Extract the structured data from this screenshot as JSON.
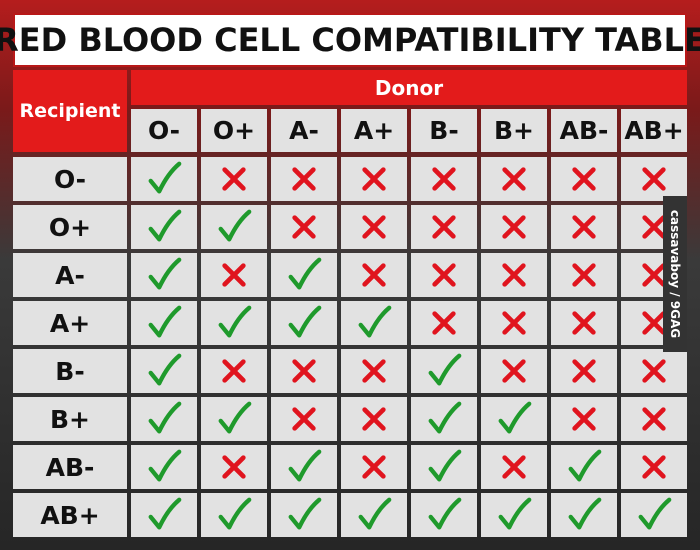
{
  "title": "RED BLOOD CELL COMPATIBILITY TABLE",
  "recipient_label": "Recipient",
  "donor_label": "Donor",
  "donor_types": [
    "O-",
    "O+",
    "A-",
    "A+",
    "B-",
    "B+",
    "AB-",
    "AB+"
  ],
  "rows": [
    {
      "recipient": "O-",
      "compatible": [
        true,
        false,
        false,
        false,
        false,
        false,
        false,
        false
      ]
    },
    {
      "recipient": "O+",
      "compatible": [
        true,
        true,
        false,
        false,
        false,
        false,
        false,
        false
      ]
    },
    {
      "recipient": "A-",
      "compatible": [
        true,
        false,
        true,
        false,
        false,
        false,
        false,
        false
      ]
    },
    {
      "recipient": "A+",
      "compatible": [
        true,
        true,
        true,
        true,
        false,
        false,
        false,
        false
      ]
    },
    {
      "recipient": "B-",
      "compatible": [
        true,
        false,
        false,
        false,
        true,
        false,
        false,
        false
      ]
    },
    {
      "recipient": "B+",
      "compatible": [
        true,
        true,
        false,
        false,
        true,
        true,
        false,
        false
      ]
    },
    {
      "recipient": "AB-",
      "compatible": [
        true,
        false,
        true,
        false,
        true,
        false,
        true,
        false
      ]
    },
    {
      "recipient": "AB+",
      "compatible": [
        true,
        true,
        true,
        true,
        true,
        true,
        true,
        true
      ]
    }
  ],
  "watermark": "cassavaboy / 9GAG",
  "colors": {
    "header_red": "#e31b1b",
    "check_green": "#1f9a2c",
    "cross_red": "#e0141e",
    "cell_gray": "#e2e2e2"
  },
  "icons": {
    "compatible": "check-icon",
    "incompatible": "cross-icon"
  }
}
